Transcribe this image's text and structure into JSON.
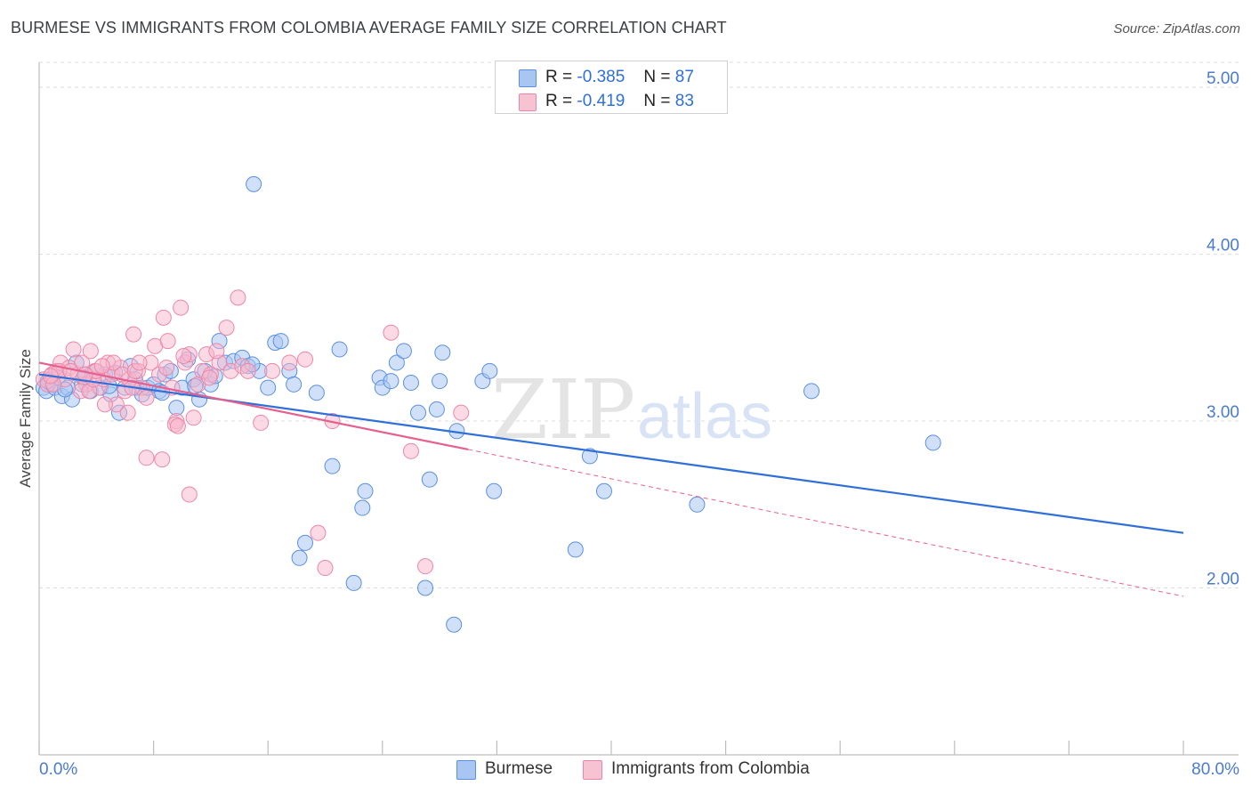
{
  "title": "BURMESE VS IMMIGRANTS FROM COLOMBIA AVERAGE FAMILY SIZE CORRELATION CHART",
  "source": "Source: ZipAtlas.com",
  "watermark": {
    "zip": "ZIP",
    "atlas": "atlas"
  },
  "legend": {
    "burmese": {
      "r_label": "R =",
      "r_value": "-0.385",
      "n_label": "N =",
      "n_value": "87"
    },
    "colombia": {
      "r_label": "R =",
      "r_value": "-0.419",
      "n_label": "N =",
      "n_value": "83"
    }
  },
  "bottom_legend": {
    "burmese": "Burmese",
    "colombia": "Immigrants from Colombia"
  },
  "colors": {
    "blue_fill": "#a9c6f2",
    "blue_stroke": "#5b8fe0",
    "blue_line": "#2f6fd8",
    "pink_fill": "#f7b6cb",
    "pink_stroke": "#ec86a8",
    "pink_line": "#e6608f",
    "grid": "#dcdcdc",
    "tick": "#4a7bd0"
  },
  "chart_data": {
    "type": "scatter",
    "title": "BURMESE VS IMMIGRANTS FROM COLOMBIA AVERAGE FAMILY SIZE CORRELATION CHART",
    "xlabel": "",
    "ylabel": "Average Family Size",
    "xlim": [
      0,
      80
    ],
    "ylim": [
      1.0,
      5.15
    ],
    "x_tick_labels": [
      "0.0%",
      "80.0%"
    ],
    "y_ticks": [
      2.0,
      3.0,
      4.0,
      5.0
    ],
    "y_tick_labels": [
      "2.00",
      "3.00",
      "4.00",
      "5.00"
    ],
    "series": [
      {
        "name": "Burmese",
        "color": "#5b8fe0",
        "trend": {
          "x0": 0,
          "y0": 3.28,
          "x1": 80,
          "y1": 2.33
        },
        "points": [
          [
            0.3,
            3.2
          ],
          [
            0.5,
            3.18
          ],
          [
            0.7,
            3.25
          ],
          [
            0.9,
            3.22
          ],
          [
            1.1,
            3.2
          ],
          [
            1.3,
            3.26
          ],
          [
            1.6,
            3.15
          ],
          [
            2.0,
            3.2
          ],
          [
            2.3,
            3.13
          ],
          [
            2.6,
            3.35
          ],
          [
            3.0,
            3.22
          ],
          [
            3.3,
            3.28
          ],
          [
            3.6,
            3.18
          ],
          [
            3.9,
            3.3
          ],
          [
            4.3,
            3.2
          ],
          [
            4.6,
            3.28
          ],
          [
            5.0,
            3.16
          ],
          [
            5.3,
            3.29
          ],
          [
            5.6,
            3.05
          ],
          [
            6.0,
            3.2
          ],
          [
            6.4,
            3.33
          ],
          [
            6.8,
            3.2
          ],
          [
            7.2,
            3.16
          ],
          [
            7.6,
            3.2
          ],
          [
            8.0,
            3.22
          ],
          [
            8.4,
            3.18
          ],
          [
            8.8,
            3.28
          ],
          [
            9.2,
            3.3
          ],
          [
            9.6,
            3.08
          ],
          [
            10.0,
            3.2
          ],
          [
            10.4,
            3.37
          ],
          [
            10.8,
            3.25
          ],
          [
            11.2,
            3.13
          ],
          [
            11.6,
            3.3
          ],
          [
            12.0,
            3.22
          ],
          [
            12.6,
            3.48
          ],
          [
            13.0,
            3.35
          ],
          [
            13.6,
            3.36
          ],
          [
            14.2,
            3.38
          ],
          [
            14.6,
            3.33
          ],
          [
            15.0,
            4.42
          ],
          [
            15.4,
            3.3
          ],
          [
            16.0,
            3.2
          ],
          [
            16.5,
            3.47
          ],
          [
            16.9,
            3.48
          ],
          [
            17.5,
            3.3
          ],
          [
            17.8,
            3.22
          ],
          [
            18.2,
            2.18
          ],
          [
            18.6,
            2.27
          ],
          [
            19.4,
            3.17
          ],
          [
            20.5,
            2.73
          ],
          [
            21.0,
            3.43
          ],
          [
            22.0,
            2.03
          ],
          [
            22.6,
            2.48
          ],
          [
            22.8,
            2.58
          ],
          [
            23.8,
            3.26
          ],
          [
            24.0,
            3.2
          ],
          [
            24.6,
            3.24
          ],
          [
            25.0,
            3.35
          ],
          [
            25.5,
            3.42
          ],
          [
            26.0,
            3.23
          ],
          [
            26.5,
            3.05
          ],
          [
            27.0,
            2.0
          ],
          [
            27.3,
            2.65
          ],
          [
            27.8,
            3.07
          ],
          [
            28.0,
            3.24
          ],
          [
            28.2,
            3.41
          ],
          [
            29.0,
            1.78
          ],
          [
            29.2,
            2.94
          ],
          [
            31.0,
            3.24
          ],
          [
            31.5,
            3.3
          ],
          [
            31.8,
            2.58
          ],
          [
            37.5,
            2.23
          ],
          [
            38.5,
            2.79
          ],
          [
            39.5,
            2.58
          ],
          [
            46.0,
            2.5
          ],
          [
            54.0,
            3.18
          ],
          [
            62.5,
            2.87
          ],
          [
            0.6,
            3.24
          ],
          [
            1.8,
            3.19
          ],
          [
            3.1,
            3.26
          ],
          [
            4.9,
            3.21
          ],
          [
            6.7,
            3.25
          ],
          [
            8.6,
            3.17
          ],
          [
            10.9,
            3.21
          ],
          [
            12.3,
            3.27
          ],
          [
            14.9,
            3.34
          ]
        ]
      },
      {
        "name": "Immigrants from Colombia",
        "color": "#ec86a8",
        "trend": {
          "x0": 0,
          "y0": 3.35,
          "x1": 30,
          "y1": 2.83,
          "dash_to_x": 80,
          "dash_to_y": 1.95
        },
        "points": [
          [
            0.3,
            3.25
          ],
          [
            0.6,
            3.22
          ],
          [
            0.9,
            3.28
          ],
          [
            1.2,
            3.3
          ],
          [
            1.5,
            3.35
          ],
          [
            1.8,
            3.25
          ],
          [
            2.1,
            3.32
          ],
          [
            2.4,
            3.43
          ],
          [
            2.7,
            3.28
          ],
          [
            3.0,
            3.35
          ],
          [
            3.3,
            3.22
          ],
          [
            3.6,
            3.42
          ],
          [
            3.9,
            3.3
          ],
          [
            4.2,
            3.2
          ],
          [
            4.5,
            3.25
          ],
          [
            4.8,
            3.35
          ],
          [
            5.1,
            3.28
          ],
          [
            5.4,
            3.1
          ],
          [
            5.7,
            3.32
          ],
          [
            6.0,
            3.18
          ],
          [
            6.3,
            3.25
          ],
          [
            6.6,
            3.52
          ],
          [
            6.9,
            3.3
          ],
          [
            7.2,
            3.2
          ],
          [
            7.5,
            3.14
          ],
          [
            7.8,
            3.35
          ],
          [
            8.1,
            3.45
          ],
          [
            8.4,
            3.28
          ],
          [
            8.7,
            3.62
          ],
          [
            9.0,
            3.48
          ],
          [
            9.3,
            3.2
          ],
          [
            9.6,
            3.0
          ],
          [
            9.9,
            3.68
          ],
          [
            10.2,
            3.35
          ],
          [
            10.5,
            3.4
          ],
          [
            10.8,
            3.02
          ],
          [
            11.1,
            3.22
          ],
          [
            11.4,
            3.3
          ],
          [
            11.7,
            3.4
          ],
          [
            12.0,
            3.28
          ],
          [
            12.6,
            3.35
          ],
          [
            13.1,
            3.56
          ],
          [
            13.4,
            3.3
          ],
          [
            13.9,
            3.74
          ],
          [
            14.2,
            3.33
          ],
          [
            14.6,
            3.3
          ],
          [
            15.5,
            2.99
          ],
          [
            16.3,
            3.3
          ],
          [
            17.5,
            3.35
          ],
          [
            18.6,
            3.37
          ],
          [
            19.5,
            2.33
          ],
          [
            20.0,
            2.12
          ],
          [
            20.5,
            3.0
          ],
          [
            24.6,
            3.53
          ],
          [
            26.0,
            2.82
          ],
          [
            27.0,
            2.13
          ],
          [
            29.5,
            3.05
          ],
          [
            7.5,
            2.78
          ],
          [
            9.5,
            2.98
          ],
          [
            10.5,
            2.56
          ],
          [
            8.6,
            2.77
          ],
          [
            4.6,
            3.1
          ],
          [
            6.2,
            3.05
          ],
          [
            2.9,
            3.18
          ],
          [
            1.4,
            3.3
          ],
          [
            5.8,
            3.28
          ],
          [
            3.5,
            3.18
          ],
          [
            2.2,
            3.3
          ],
          [
            6.7,
            3.3
          ],
          [
            5.2,
            3.35
          ],
          [
            8.9,
            3.32
          ],
          [
            7.0,
            3.35
          ],
          [
            3.8,
            3.25
          ],
          [
            4.0,
            3.3
          ],
          [
            1.0,
            3.22
          ],
          [
            0.8,
            3.27
          ],
          [
            9.7,
            2.97
          ],
          [
            11.9,
            3.26
          ],
          [
            12.4,
            3.42
          ],
          [
            4.4,
            3.33
          ],
          [
            6.5,
            3.2
          ],
          [
            3.2,
            3.28
          ],
          [
            10.1,
            3.39
          ]
        ]
      }
    ]
  }
}
